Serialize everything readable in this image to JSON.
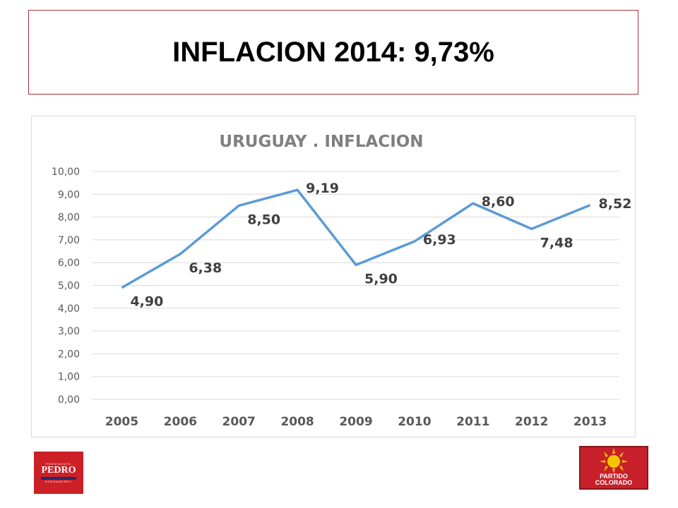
{
  "slide_title": "INFLACION 2014: 9,73%",
  "chart_data": {
    "type": "line",
    "title": "URUGUAY . INFLACION",
    "categories": [
      "2005",
      "2006",
      "2007",
      "2008",
      "2009",
      "2010",
      "2011",
      "2012",
      "2013"
    ],
    "series": [
      {
        "values": [
          4.9,
          6.38,
          8.5,
          9.19,
          5.9,
          6.93,
          8.6,
          7.48,
          8.52
        ],
        "labels": [
          "4,90",
          "6,38",
          "8,50",
          "9,19",
          "5,90",
          "6,93",
          "8,60",
          "7,48",
          "8,52"
        ]
      }
    ],
    "ylim": [
      0,
      10
    ],
    "yticks": [
      "0,00",
      "1,00",
      "2,00",
      "3,00",
      "4,00",
      "5,00",
      "6,00",
      "7,00",
      "8,00",
      "9,00",
      "10,00"
    ],
    "grid": true,
    "line_color": "#5b9bd5"
  },
  "logos": {
    "left": {
      "small_top": "PRESIDENTE",
      "name": "PEDRO",
      "small_bottom": "BORDABERRY"
    },
    "right": {
      "line1": "PARTIDO",
      "line2": "COLORADO"
    }
  }
}
